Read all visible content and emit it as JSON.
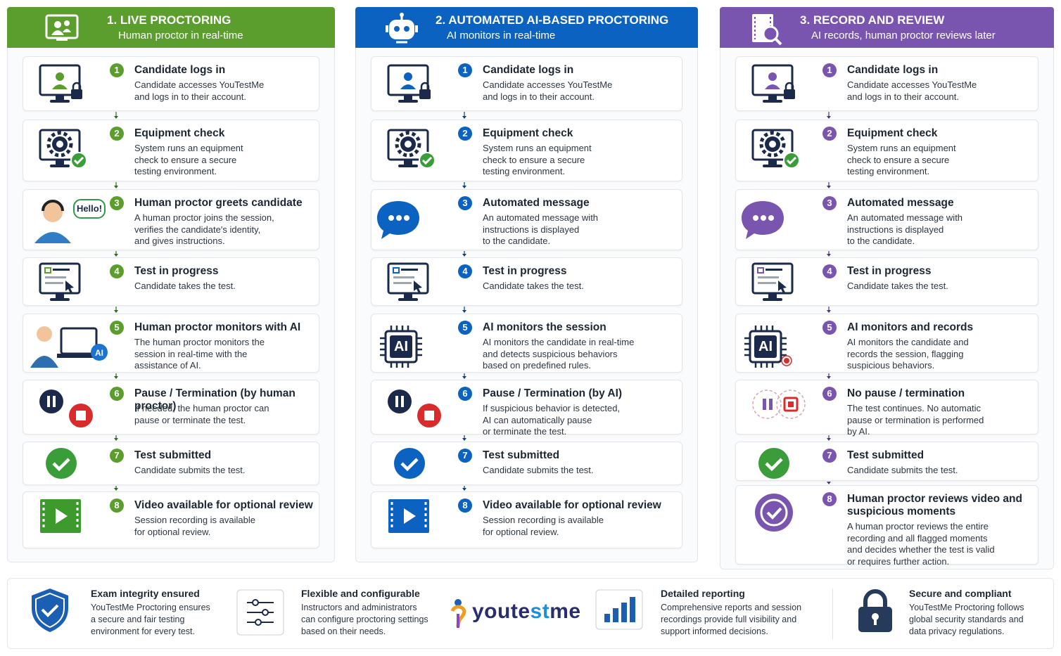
{
  "columns": [
    {
      "title": "1. LIVE PROCTORING",
      "subtitle": "Human proctor in real-time",
      "steps": [
        {
          "number": 1,
          "title": "Candidate logs in",
          "description": [
            "Candidate accesses YouTestMe",
            "and logs in to their account."
          ]
        },
        {
          "number": 2,
          "title": "Equipment check",
          "description": [
            "System runs an equipment",
            "check to ensure a secure",
            "testing environment."
          ]
        },
        {
          "number": 3,
          "title": "Human proctor greets candidate",
          "description": [
            "A human proctor joins the session,",
            "verifies the candidate's identity,",
            "and gives instructions."
          ],
          "icon_text": "Hello!"
        },
        {
          "number": 4,
          "title": "Test in progress",
          "description": [
            "Candidate takes the test."
          ]
        },
        {
          "number": 5,
          "title": "Human proctor monitors with AI",
          "description": [
            "The human proctor monitors the",
            "session in real-time with the",
            "assistance of AI."
          ],
          "icon_text": "AI"
        },
        {
          "number": 6,
          "title": "Pause / Termination (by human proctor)",
          "description": [
            "If needed, the human proctor can",
            "pause or terminate the test."
          ]
        },
        {
          "number": 7,
          "title": "Test submitted",
          "description": [
            "Candidate submits the test."
          ]
        },
        {
          "number": 8,
          "title": "Video available for optional review",
          "description": [
            "Session recording is available",
            "for optional review."
          ]
        }
      ]
    },
    {
      "title": "2. AUTOMATED AI-BASED PROCTORING",
      "subtitle": "AI monitors in real-time",
      "steps": [
        {
          "number": 1,
          "title": "Candidate logs in",
          "description": [
            "Candidate accesses YouTestMe",
            "and logs in to their account."
          ]
        },
        {
          "number": 2,
          "title": "Equipment check",
          "description": [
            "System runs an equipment",
            "check to ensure a secure",
            "testing environment."
          ]
        },
        {
          "number": 3,
          "title": "Automated message",
          "description": [
            "An automated message with",
            "instructions is displayed",
            "to the candidate."
          ]
        },
        {
          "number": 4,
          "title": "Test in progress",
          "description": [
            "Candidate takes the test."
          ]
        },
        {
          "number": 5,
          "title": "AI monitors the session",
          "description": [
            "AI monitors the candidate in real-time",
            "and detects suspicious behaviors",
            "based on predefined rules."
          ],
          "icon_text": "AI"
        },
        {
          "number": 6,
          "title": "Pause / Termination (by AI)",
          "description": [
            "If suspicious behavior is detected,",
            "AI can automatically pause",
            "or terminate the test."
          ]
        },
        {
          "number": 7,
          "title": "Test submitted",
          "description": [
            "Candidate submits the test."
          ]
        },
        {
          "number": 8,
          "title": "Video available for optional review",
          "description": [
            "Session recording is available",
            "for optional review."
          ]
        }
      ]
    },
    {
      "title": "3. RECORD AND REVIEW",
      "subtitle": "AI records, human proctor reviews later",
      "steps": [
        {
          "number": 1,
          "title": "Candidate logs in",
          "description": [
            "Candidate accesses YouTestMe",
            "and logs in to their account."
          ]
        },
        {
          "number": 2,
          "title": "Equipment check",
          "description": [
            "System runs an equipment",
            "check to ensure a secure",
            "testing environment."
          ]
        },
        {
          "number": 3,
          "title": "Automated message",
          "description": [
            "An automated message with",
            "instructions is displayed",
            "to the candidate."
          ]
        },
        {
          "number": 4,
          "title": "Test in progress",
          "description": [
            "Candidate takes the test."
          ]
        },
        {
          "number": 5,
          "title": "AI monitors and records",
          "description": [
            "AI monitors the candidate and",
            "records the session, flagging",
            "suspicious behaviors."
          ],
          "icon_text": "AI"
        },
        {
          "number": 6,
          "title": "No pause / termination",
          "description": [
            "The test continues. No automatic",
            "pause or termination is performed",
            "by AI."
          ]
        },
        {
          "number": 7,
          "title": "Test submitted",
          "description": [
            "Candidate submits the test."
          ]
        },
        {
          "number": 8,
          "title": "Human proctor reviews video and suspicious moments",
          "description": [
            "A human proctor reviews the entire",
            "recording and all flagged moments",
            "and decides whether the test is valid",
            "or requires further action."
          ]
        }
      ]
    }
  ],
  "footer": {
    "features": [
      {
        "title": "Exam integrity ensured",
        "description": [
          "YouTestMe Proctoring ensures",
          "a secure and fair testing",
          "environment for every test."
        ]
      },
      {
        "title": "Flexible and configurable",
        "description": [
          "Instructors and administrators",
          "can configure proctoring settings",
          "based on their needs."
        ]
      },
      {
        "title": "Detailed reporting",
        "description": [
          "Comprehensive reports and session",
          "recordings provide full visibility and",
          "support informed decisions."
        ]
      },
      {
        "title": "Secure and compliant",
        "description": [
          "YouTestMe Proctoring follows",
          "global security standards and",
          "data privacy regulations."
        ]
      }
    ],
    "logo": {
      "part1": "youte",
      "part2": "st",
      "part3": "me"
    }
  }
}
